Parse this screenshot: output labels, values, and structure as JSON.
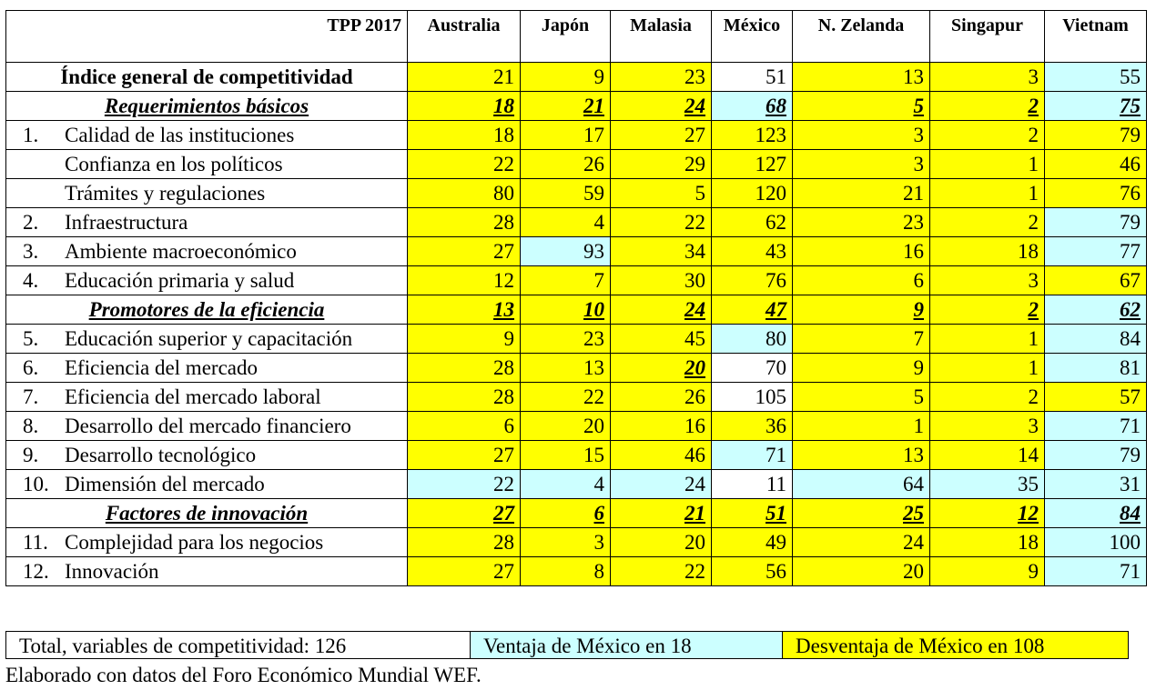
{
  "table": {
    "title": "TPP 2017",
    "columns": [
      "Australia",
      "Japón",
      "Malasia",
      "México",
      "N. Zelanda",
      "Singapur",
      "Vietnam"
    ],
    "rows": [
      {
        "num": "",
        "label": "Índice general de competitividad",
        "kind": "main",
        "values": [
          "21",
          "9",
          "23",
          "51",
          "13",
          "3",
          "55"
        ],
        "colors": [
          "y",
          "y",
          "y",
          "w",
          "y",
          "y",
          "b"
        ]
      },
      {
        "num": "",
        "label": "Requerimientos básicos",
        "kind": "section",
        "values": [
          "18",
          "21",
          "24",
          "68",
          "5",
          "2",
          "75"
        ],
        "colors": [
          "y",
          "y",
          "y",
          "b",
          "y",
          "y",
          "b"
        ]
      },
      {
        "num": "1.",
        "label": "Calidad de las instituciones",
        "kind": "item",
        "values": [
          "18",
          "17",
          "27",
          "123",
          "3",
          "2",
          "79"
        ],
        "colors": [
          "y",
          "y",
          "y",
          "y",
          "y",
          "y",
          "y"
        ]
      },
      {
        "num": "",
        "label": "Confianza en los políticos",
        "kind": "item",
        "values": [
          "22",
          "26",
          "29",
          "127",
          "3",
          "1",
          "46"
        ],
        "colors": [
          "y",
          "y",
          "y",
          "y",
          "y",
          "y",
          "y"
        ]
      },
      {
        "num": "",
        "label": "Trámites y regulaciones",
        "kind": "item",
        "values": [
          "80",
          "59",
          "5",
          "120",
          "21",
          "1",
          "76"
        ],
        "colors": [
          "y",
          "y",
          "y",
          "y",
          "y",
          "y",
          "y"
        ]
      },
      {
        "num": "2.",
        "label": "Infraestructura",
        "kind": "item",
        "values": [
          "28",
          "4",
          "22",
          "62",
          "23",
          "2",
          "79"
        ],
        "colors": [
          "y",
          "y",
          "y",
          "y",
          "y",
          "y",
          "b"
        ]
      },
      {
        "num": "3.",
        "label": "Ambiente macroeconómico",
        "kind": "item",
        "values": [
          "27",
          "93",
          "34",
          "43",
          "16",
          "18",
          "77"
        ],
        "colors": [
          "y",
          "b",
          "y",
          "y",
          "y",
          "y",
          "b"
        ]
      },
      {
        "num": "4.",
        "label": "Educación primaria y salud",
        "kind": "item",
        "values": [
          "12",
          "7",
          "30",
          "76",
          "6",
          "3",
          "67"
        ],
        "colors": [
          "y",
          "y",
          "y",
          "y",
          "y",
          "y",
          "y"
        ]
      },
      {
        "num": "",
        "label": "Promotores de la eficiencia",
        "kind": "section",
        "values": [
          "13",
          "10",
          "24",
          "47",
          "9",
          "2",
          "62"
        ],
        "colors": [
          "y",
          "y",
          "y",
          "y",
          "y",
          "y",
          "b"
        ]
      },
      {
        "num": "5.",
        "label": "Educación superior y capacitación",
        "kind": "item2",
        "values": [
          "9",
          "23",
          "45",
          "80",
          "7",
          "1",
          "84"
        ],
        "colors": [
          "y",
          "y",
          "y",
          "b",
          "y",
          "y",
          "b"
        ]
      },
      {
        "num": "6.",
        "label": "Eficiencia del mercado",
        "kind": "item",
        "values": [
          "28",
          "13",
          "20",
          "70",
          "9",
          "1",
          "81"
        ],
        "colors": [
          "y",
          "y",
          "y",
          "w",
          "y",
          "y",
          "b"
        ],
        "emph": [
          2
        ]
      },
      {
        "num": "7.",
        "label": "Eficiencia del mercado laboral",
        "kind": "item",
        "values": [
          "28",
          "22",
          "26",
          "105",
          "5",
          "2",
          "57"
        ],
        "colors": [
          "y",
          "y",
          "y",
          "w",
          "y",
          "y",
          "y"
        ]
      },
      {
        "num": "8.",
        "label": "Desarrollo del mercado financiero",
        "kind": "item2",
        "values": [
          "6",
          "20",
          "16",
          "36",
          "1",
          "3",
          "71"
        ],
        "colors": [
          "y",
          "y",
          "y",
          "y",
          "y",
          "y",
          "b"
        ]
      },
      {
        "num": "9.",
        "label": "Desarrollo tecnológico",
        "kind": "item",
        "values": [
          "27",
          "15",
          "46",
          "71",
          "13",
          "14",
          "79"
        ],
        "colors": [
          "y",
          "y",
          "y",
          "b",
          "y",
          "y",
          "b"
        ]
      },
      {
        "num": "10.",
        "label": "Dimensión del mercado",
        "kind": "item",
        "values": [
          "22",
          "4",
          "24",
          "11",
          "64",
          "35",
          "31"
        ],
        "colors": [
          "b",
          "b",
          "b",
          "w",
          "b",
          "b",
          "b"
        ]
      },
      {
        "num": "",
        "label": "Factores de innovación",
        "kind": "section",
        "values": [
          "27",
          "6",
          "21",
          "51",
          "25",
          "12",
          "84"
        ],
        "colors": [
          "y",
          "y",
          "y",
          "y",
          "y",
          "y",
          "b"
        ]
      },
      {
        "num": "11.",
        "label": "Complejidad para los negocios",
        "kind": "item",
        "values": [
          "28",
          "3",
          "20",
          "49",
          "24",
          "18",
          "100"
        ],
        "colors": [
          "y",
          "y",
          "y",
          "y",
          "y",
          "y",
          "b"
        ]
      },
      {
        "num": "12.",
        "label": "Innovación",
        "kind": "item",
        "values": [
          "27",
          "8",
          "22",
          "56",
          "20",
          "9",
          "71"
        ],
        "colors": [
          "y",
          "y",
          "y",
          "y",
          "y",
          "y",
          "b"
        ]
      }
    ]
  },
  "legend": {
    "total": "Total, variables de competitividad: 126",
    "advantage": "Ventaja de México en 18",
    "disadvantage": "Desventaja de México en 108"
  },
  "source": "Elaborado con datos del Foro Económico Mundial WEF.",
  "colors": {
    "yellow": "#ffff00",
    "light_blue": "#ccffff",
    "white": "#ffffff"
  }
}
